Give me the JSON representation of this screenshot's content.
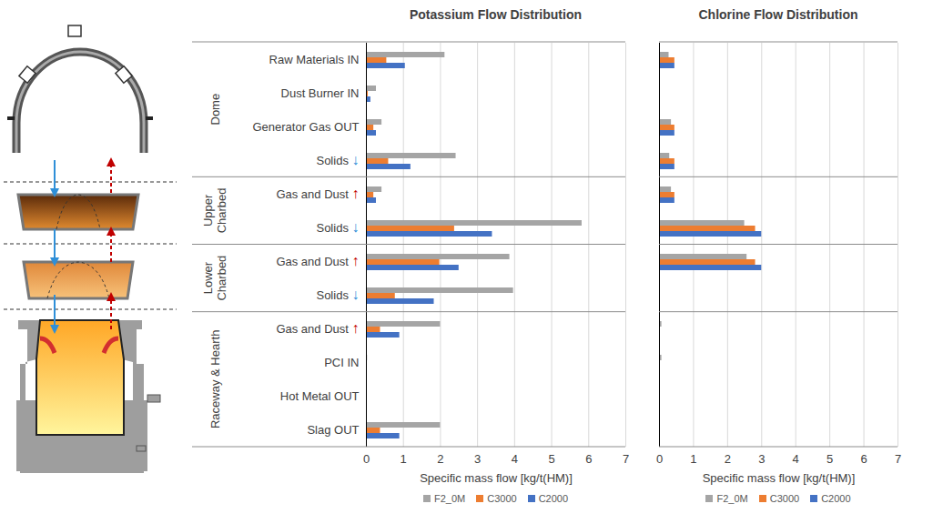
{
  "chart_data": [
    {
      "type": "bar",
      "orientation": "horizontal",
      "title": "Potassium Flow Distribution",
      "x_label": "Specific mass flow [kg/t(HM)]",
      "categories": [
        "Raw Materials IN",
        "Dust Burner IN",
        "Generator Gas OUT",
        "Solids ↓",
        "Gas and Dust ↑",
        "Solids ↓",
        "Gas and Dust ↑",
        "Solids ↓",
        "Gas and Dust ↑",
        "PCI IN",
        "Hot Metal OUT",
        "Slag OUT"
      ],
      "groups": [
        "Dome",
        "Dome",
        "Dome",
        "Dome",
        "Upper Charbed",
        "Upper Charbed",
        "Lower Charbed",
        "Lower Charbed",
        "Raceway & Hearth",
        "Raceway & Hearth",
        "Raceway & Hearth",
        "Raceway & Hearth"
      ],
      "series": [
        {
          "name": "F2_0M",
          "color": "#a5a5a5",
          "values": [
            2.12,
            0.27,
            0.42,
            2.42,
            0.42,
            5.82,
            3.87,
            3.97,
            2.0,
            0.03,
            0,
            2.0
          ]
        },
        {
          "name": "C3000",
          "color": "#ed7d31",
          "values": [
            0.55,
            0.05,
            0.2,
            0.6,
            0.2,
            2.38,
            1.98,
            0.78,
            0.38,
            0,
            0,
            0.38
          ]
        },
        {
          "name": "C2000",
          "color": "#4472c4",
          "values": [
            1.05,
            0.12,
            0.27,
            1.2,
            0.27,
            3.4,
            2.5,
            1.83,
            0.9,
            0,
            0,
            0.9
          ]
        }
      ],
      "xlim": [
        0,
        7
      ],
      "xticks": [
        0,
        1,
        2,
        3,
        4,
        5,
        6,
        7
      ],
      "grid": true,
      "legend": "bottom"
    },
    {
      "type": "bar",
      "orientation": "horizontal",
      "title": "Chlorine Flow Distribution",
      "x_label": "Specific mass flow [kg/t(HM)]",
      "categories": [
        "Raw Materials IN",
        "Dust Burner IN",
        "Generator Gas OUT",
        "Solids ↓",
        "Gas and Dust ↑",
        "Solids ↓",
        "Gas and Dust ↑",
        "Solids ↓",
        "Gas and Dust ↑",
        "PCI IN",
        "Hot Metal OUT",
        "Slag OUT"
      ],
      "groups": [
        "Dome",
        "Dome",
        "Dome",
        "Dome",
        "Upper Charbed",
        "Upper Charbed",
        "Lower Charbed",
        "Lower Charbed",
        "Raceway & Hearth",
        "Raceway & Hearth",
        "Raceway & Hearth",
        "Raceway & Hearth"
      ],
      "series": [
        {
          "name": "F2_0M",
          "color": "#a5a5a5",
          "values": [
            0.28,
            0,
            0.35,
            0.3,
            0.35,
            2.5,
            2.57,
            0,
            0.07,
            0.07,
            0,
            0
          ]
        },
        {
          "name": "C3000",
          "color": "#ed7d31",
          "values": [
            0.45,
            0,
            0.45,
            0.45,
            0.45,
            2.82,
            2.82,
            0,
            0,
            0,
            0,
            0
          ]
        },
        {
          "name": "C2000",
          "color": "#4472c4",
          "values": [
            0.45,
            0,
            0.45,
            0.45,
            0.45,
            3.0,
            3.0,
            0,
            0,
            0,
            0,
            0
          ]
        }
      ],
      "xlim": [
        0,
        7
      ],
      "xticks": [
        0,
        1,
        2,
        3,
        4,
        5,
        6,
        7
      ],
      "grid": true,
      "legend": "bottom",
      "tick_labels": "x"
    }
  ]
}
